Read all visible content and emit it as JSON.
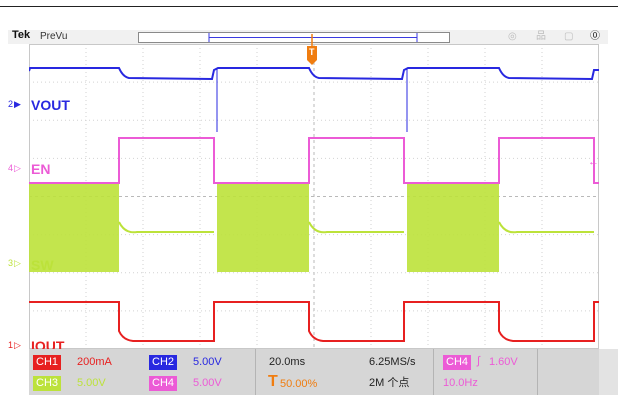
{
  "header": {
    "brand": "Tek",
    "mode": "PreVu"
  },
  "icons": {
    "trigger_marker": "trigger-position-icon",
    "help": "help-icon"
  },
  "trigger_marker_label": "T",
  "channel_labels": [
    {
      "number": "2",
      "name": "VOUT",
      "color": "#2828e0"
    },
    {
      "number": "4",
      "name": "EN",
      "color": "#ec5bd6"
    },
    {
      "number": "3",
      "name": "SW",
      "color": "#bce23a"
    },
    {
      "number": "1",
      "name": "IOUT",
      "color": "#e72020"
    }
  ],
  "readout": {
    "ch1": {
      "tag": "CH1",
      "value": "200mA",
      "color": "#e72020"
    },
    "ch2": {
      "tag": "CH2",
      "value": "5.00V",
      "color": "#2828e0"
    },
    "ch3": {
      "tag": "CH3",
      "value": "5.00V",
      "color": "#bce23a"
    },
    "ch4": {
      "tag": "CH4",
      "value": "5.00V",
      "color": "#ec5bd6"
    },
    "timebase": "20.0ms",
    "sample_rate": "6.25MS/s",
    "trigger_position": "50.00%",
    "record_length": "2M 个点",
    "trigger": {
      "tag": "CH4",
      "slope": "∫",
      "level": "1.60V"
    },
    "frequency": "10.0Hz"
  },
  "colors": {
    "orange": "#f07d10",
    "background": "#ffffff"
  }
}
